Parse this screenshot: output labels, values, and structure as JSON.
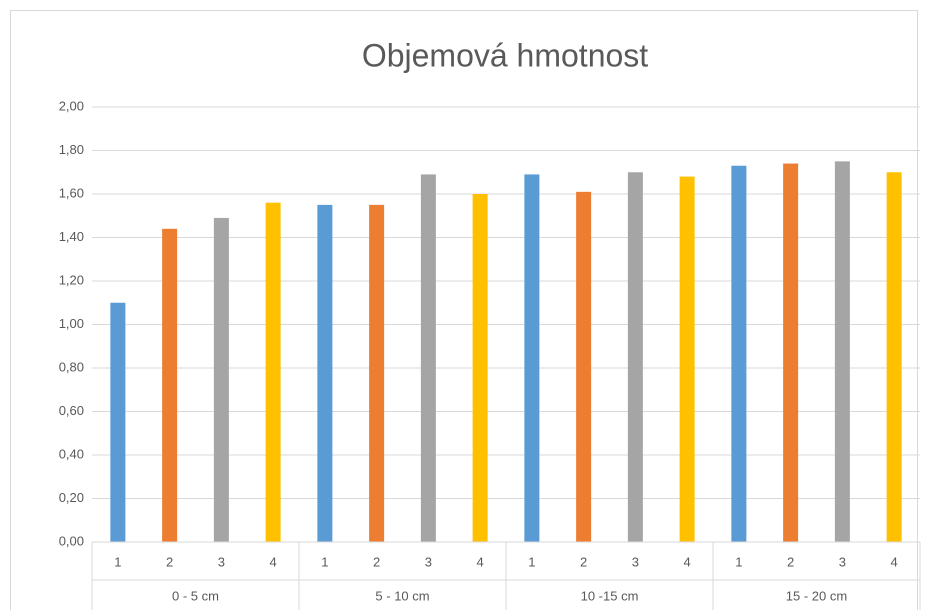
{
  "chart_data": {
    "type": "bar",
    "title": "Objemová hmotnost",
    "groups": [
      {
        "name": "0 - 5 cm",
        "categories": [
          "1",
          "2",
          "3",
          "4"
        ],
        "values": [
          1.1,
          1.44,
          1.49,
          1.56
        ]
      },
      {
        "name": "5 - 10 cm",
        "categories": [
          "1",
          "2",
          "3",
          "4"
        ],
        "values": [
          1.55,
          1.55,
          1.69,
          1.6
        ]
      },
      {
        "name": "10 -15 cm",
        "categories": [
          "1",
          "2",
          "3",
          "4"
        ],
        "values": [
          1.69,
          1.61,
          1.7,
          1.68
        ]
      },
      {
        "name": "15 - 20 cm",
        "categories": [
          "1",
          "2",
          "3",
          "4"
        ],
        "values": [
          1.73,
          1.74,
          1.75,
          1.7
        ]
      }
    ],
    "colors": [
      "#5b9bd5",
      "#ed7d31",
      "#a5a5a5",
      "#ffc000"
    ],
    "ylim": [
      0,
      2
    ],
    "yticks": [
      {
        "value": 0,
        "label": "0,00"
      },
      {
        "value": 0.2,
        "label": "0,20"
      },
      {
        "value": 0.4,
        "label": "0,40"
      },
      {
        "value": 0.6,
        "label": "0,60"
      },
      {
        "value": 0.8,
        "label": "0,80"
      },
      {
        "value": 1,
        "label": "1,00"
      },
      {
        "value": 1.2,
        "label": "1,20"
      },
      {
        "value": 1.4,
        "label": "1,40"
      },
      {
        "value": 1.6,
        "label": "1,60"
      },
      {
        "value": 1.8,
        "label": "1,80"
      },
      {
        "value": 2,
        "label": "2,00"
      }
    ],
    "grid": true
  }
}
